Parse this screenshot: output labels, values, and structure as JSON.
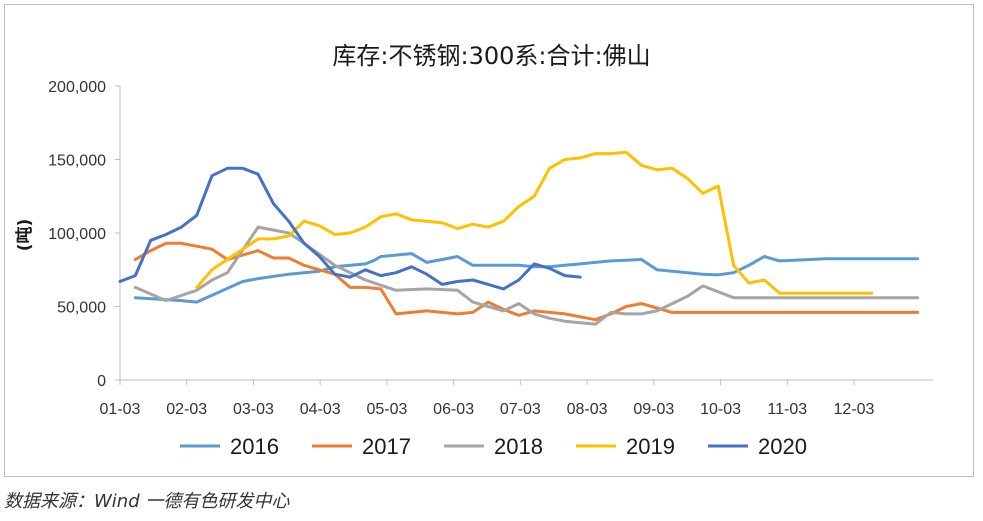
{
  "chart_data": {
    "type": "line",
    "title": "库存:不锈钢:300系:合计:佛山",
    "ylabel": "(吨)",
    "xlabel": "",
    "ylim": [
      0,
      200000
    ],
    "yticks": [
      0,
      50000,
      100000,
      150000,
      200000
    ],
    "ytick_labels": [
      "0",
      "50,000",
      "100,000",
      "150,000",
      "200,000"
    ],
    "x_categories": [
      "01-03",
      "02-03",
      "03-03",
      "04-03",
      "05-03",
      "06-03",
      "07-03",
      "08-03",
      "09-03",
      "10-03",
      "11-03",
      "12-03"
    ],
    "x_domain_weeks": [
      0,
      53
    ],
    "grid": false,
    "legend_position": "bottom",
    "series": [
      {
        "name": "2016",
        "color": "#5b9bd5",
        "x": [
          1,
          4,
          5,
          8,
          9,
          11,
          13,
          14,
          16,
          16.5,
          17,
          19,
          20,
          21,
          22,
          23,
          24,
          25,
          26,
          27,
          28,
          29,
          30,
          31,
          32,
          33,
          34,
          35,
          36,
          37,
          38,
          39,
          40,
          41,
          42,
          43,
          44,
          45,
          46,
          47,
          48,
          49,
          50,
          51,
          52
        ],
        "y": [
          56000,
          54000,
          53000,
          67000,
          69000,
          72000,
          74000,
          77000,
          79000,
          81000,
          84000,
          86000,
          80000,
          82000,
          84000,
          78000,
          78000,
          78000,
          78000,
          77000,
          77000,
          78000,
          79000,
          80000,
          81000,
          81500,
          82000,
          75000,
          74000,
          73000,
          72000,
          71500,
          73000,
          78000,
          84000,
          81000,
          81500,
          82000,
          82500,
          82500,
          82500,
          82500,
          82500,
          82500,
          82500
        ]
      },
      {
        "name": "2017",
        "color": "#ed7d31",
        "x": [
          1,
          2,
          3,
          4,
          5,
          6,
          7,
          8,
          9,
          10,
          11,
          12,
          13,
          14,
          15,
          16,
          17,
          18,
          19,
          20,
          21,
          22,
          23,
          24,
          25,
          26,
          27,
          28,
          29,
          30,
          31,
          32,
          33,
          34,
          35,
          36,
          37,
          38,
          39,
          40,
          41,
          42,
          43,
          44,
          45,
          46,
          47,
          48,
          49,
          50,
          51,
          52
        ],
        "y": [
          82000,
          88000,
          93000,
          93000,
          91000,
          89000,
          82000,
          85000,
          88000,
          83000,
          83000,
          78000,
          75000,
          72000,
          63000,
          63000,
          62000,
          45000,
          46000,
          47000,
          46000,
          45000,
          46000,
          53000,
          48000,
          44000,
          47000,
          46000,
          45000,
          43000,
          41000,
          45000,
          50000,
          52000,
          49000,
          46000,
          46000,
          46000,
          46000,
          46000,
          46000,
          46000,
          46000,
          46000,
          46000,
          46000,
          46000,
          46000,
          46000,
          46000,
          46000,
          46000
        ]
      },
      {
        "name": "2018",
        "color": "#a5a5a5",
        "x": [
          1,
          3,
          5,
          6,
          7,
          9,
          11,
          12,
          14,
          16,
          18,
          20,
          22,
          23,
          24,
          25,
          26,
          27,
          28,
          29,
          30,
          31,
          32,
          33,
          34,
          35,
          36,
          37,
          38,
          39,
          40,
          41,
          42,
          43,
          44,
          45,
          46,
          47,
          48,
          49,
          50,
          51,
          52
        ],
        "y": [
          63000,
          54000,
          61000,
          68000,
          73000,
          104000,
          100000,
          93000,
          78000,
          68000,
          61000,
          62000,
          61000,
          53000,
          50000,
          47000,
          52000,
          45000,
          42000,
          40000,
          39000,
          38000,
          46000,
          45000,
          45000,
          47000,
          52000,
          57000,
          64000,
          60000,
          56000,
          56000,
          56000,
          56000,
          56000,
          56000,
          56000,
          56000,
          56000,
          56000,
          56000,
          56000,
          56000
        ]
      },
      {
        "name": "2019",
        "color": "#ffc000",
        "x": [
          5,
          6,
          7,
          8,
          9,
          10,
          11,
          12,
          13,
          14,
          15,
          16,
          17,
          18,
          19,
          20,
          21,
          22,
          23,
          24,
          25,
          26,
          27,
          28,
          29,
          30,
          31,
          32,
          33,
          34,
          35,
          36,
          37,
          38,
          39,
          40,
          41,
          42,
          43,
          44,
          45,
          46,
          47,
          48,
          49
        ],
        "y": [
          63000,
          75000,
          82000,
          89000,
          96000,
          96000,
          98000,
          108000,
          105000,
          99000,
          100000,
          104000,
          111000,
          113000,
          109000,
          108000,
          107000,
          103000,
          106000,
          104000,
          108000,
          118000,
          125000,
          144000,
          150000,
          151000,
          154000,
          154000,
          155000,
          146000,
          143000,
          144000,
          137000,
          127000,
          132000,
          78000,
          66000,
          68000,
          59000,
          59000,
          59000,
          59000,
          59000,
          59000,
          59000
        ]
      },
      {
        "name": "2020",
        "color": "#4472c4",
        "x": [
          0,
          1,
          2,
          3,
          4,
          5,
          6,
          7,
          8,
          9,
          10,
          11,
          12,
          13,
          14,
          15,
          16,
          17,
          18,
          19,
          20,
          21,
          22,
          23,
          24,
          25,
          26,
          27,
          28,
          29,
          30
        ],
        "y": [
          67000,
          71000,
          95000,
          99000,
          104000,
          112000,
          139000,
          144000,
          144000,
          140000,
          120000,
          108000,
          93000,
          84000,
          72000,
          70000,
          75000,
          71000,
          73000,
          77000,
          72000,
          65000,
          67000,
          68000,
          65000,
          62000,
          68000,
          79000,
          76000,
          71000,
          70000
        ]
      }
    ],
    "source": "数据来源：Wind  一德有色研发中心"
  }
}
